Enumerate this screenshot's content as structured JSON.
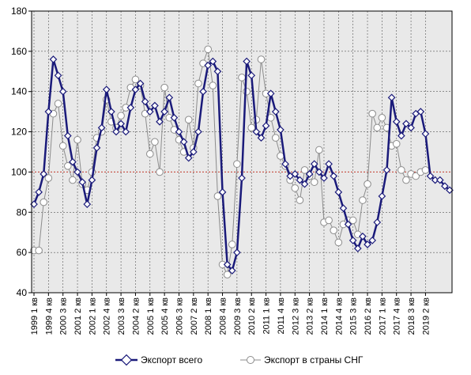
{
  "colors": {
    "plot_bg": "#e9e9e9",
    "series_total": "#1a1a7a",
    "series_cis": "#8c8c8c",
    "reference_line": "#c0392b",
    "grid": "#555555"
  },
  "chart_data": {
    "type": "line",
    "title": "",
    "xlabel": "",
    "ylabel": "",
    "ylim": [
      40,
      180
    ],
    "y_ticks": [
      "40",
      "60",
      "80",
      "100",
      "120",
      "140",
      "160",
      "180"
    ],
    "reference_line": 100,
    "grid": true,
    "legend_position": "bottom",
    "x_tick_labels": [
      "1999 1 кв",
      "1999 4 кв",
      "2000 3 кв",
      "2001 2 кв",
      "2002 1 кв",
      "2002 4 кв",
      "2003 3 кв",
      "2004 2 кв",
      "2005 1 кв",
      "2005 4 кв",
      "2006 3 кв",
      "2007 2 кв",
      "2008 1 кв",
      "2008 4 кв",
      "2009 3 кв",
      "2010 2 кв",
      "2011 1 кв",
      "2011 4 кв",
      "2012 3 кв",
      "2013 2 кв",
      "2014 1 кв",
      "2014 4 кв",
      "2015 3 кв",
      "2016 2 кв",
      "2017 1 кв",
      "2017 4 кв",
      "2018 3 кв",
      "2019 2 кв"
    ],
    "series": [
      {
        "name": "Экспорт всего",
        "values": [
          84,
          90,
          99,
          130,
          156,
          148,
          140,
          118,
          105,
          100,
          95,
          84,
          96,
          112,
          122,
          141,
          130,
          120,
          124,
          120,
          132,
          141,
          144,
          135,
          130,
          133,
          125,
          130,
          137,
          127,
          120,
          115,
          107,
          110,
          120,
          140,
          153,
          155,
          150,
          90,
          54,
          51,
          60,
          97,
          155,
          148,
          120,
          117,
          123,
          139,
          130,
          121,
          104,
          98,
          99,
          96,
          94,
          99,
          104,
          100,
          97,
          104,
          98,
          90,
          82,
          74,
          66,
          62,
          68,
          64,
          66,
          75,
          88,
          101,
          137,
          125,
          118,
          124,
          122,
          129,
          130,
          119,
          98,
          96,
          96,
          93,
          91
        ]
      },
      {
        "name": "Экспорт в страны СНГ",
        "values": [
          61,
          61,
          85,
          97,
          129,
          134,
          113,
          103,
          96,
          116,
          94,
          91,
          100,
          117,
          120,
          136,
          125,
          122,
          128,
          132,
          142,
          146,
          143,
          129,
          109,
          115,
          100,
          142,
          127,
          121,
          116,
          110,
          126,
          112,
          144,
          154,
          161,
          143,
          88,
          54,
          49,
          64,
          104,
          147,
          140,
          122,
          126,
          156,
          139,
          127,
          117,
          108,
          103,
          96,
          92,
          86,
          101,
          98,
          95,
          111,
          75,
          76,
          71,
          65,
          74,
          76,
          76,
          69,
          86,
          94,
          129,
          122,
          127,
          122,
          113,
          114,
          101,
          96,
          99,
          98,
          100,
          101
        ]
      }
    ]
  }
}
